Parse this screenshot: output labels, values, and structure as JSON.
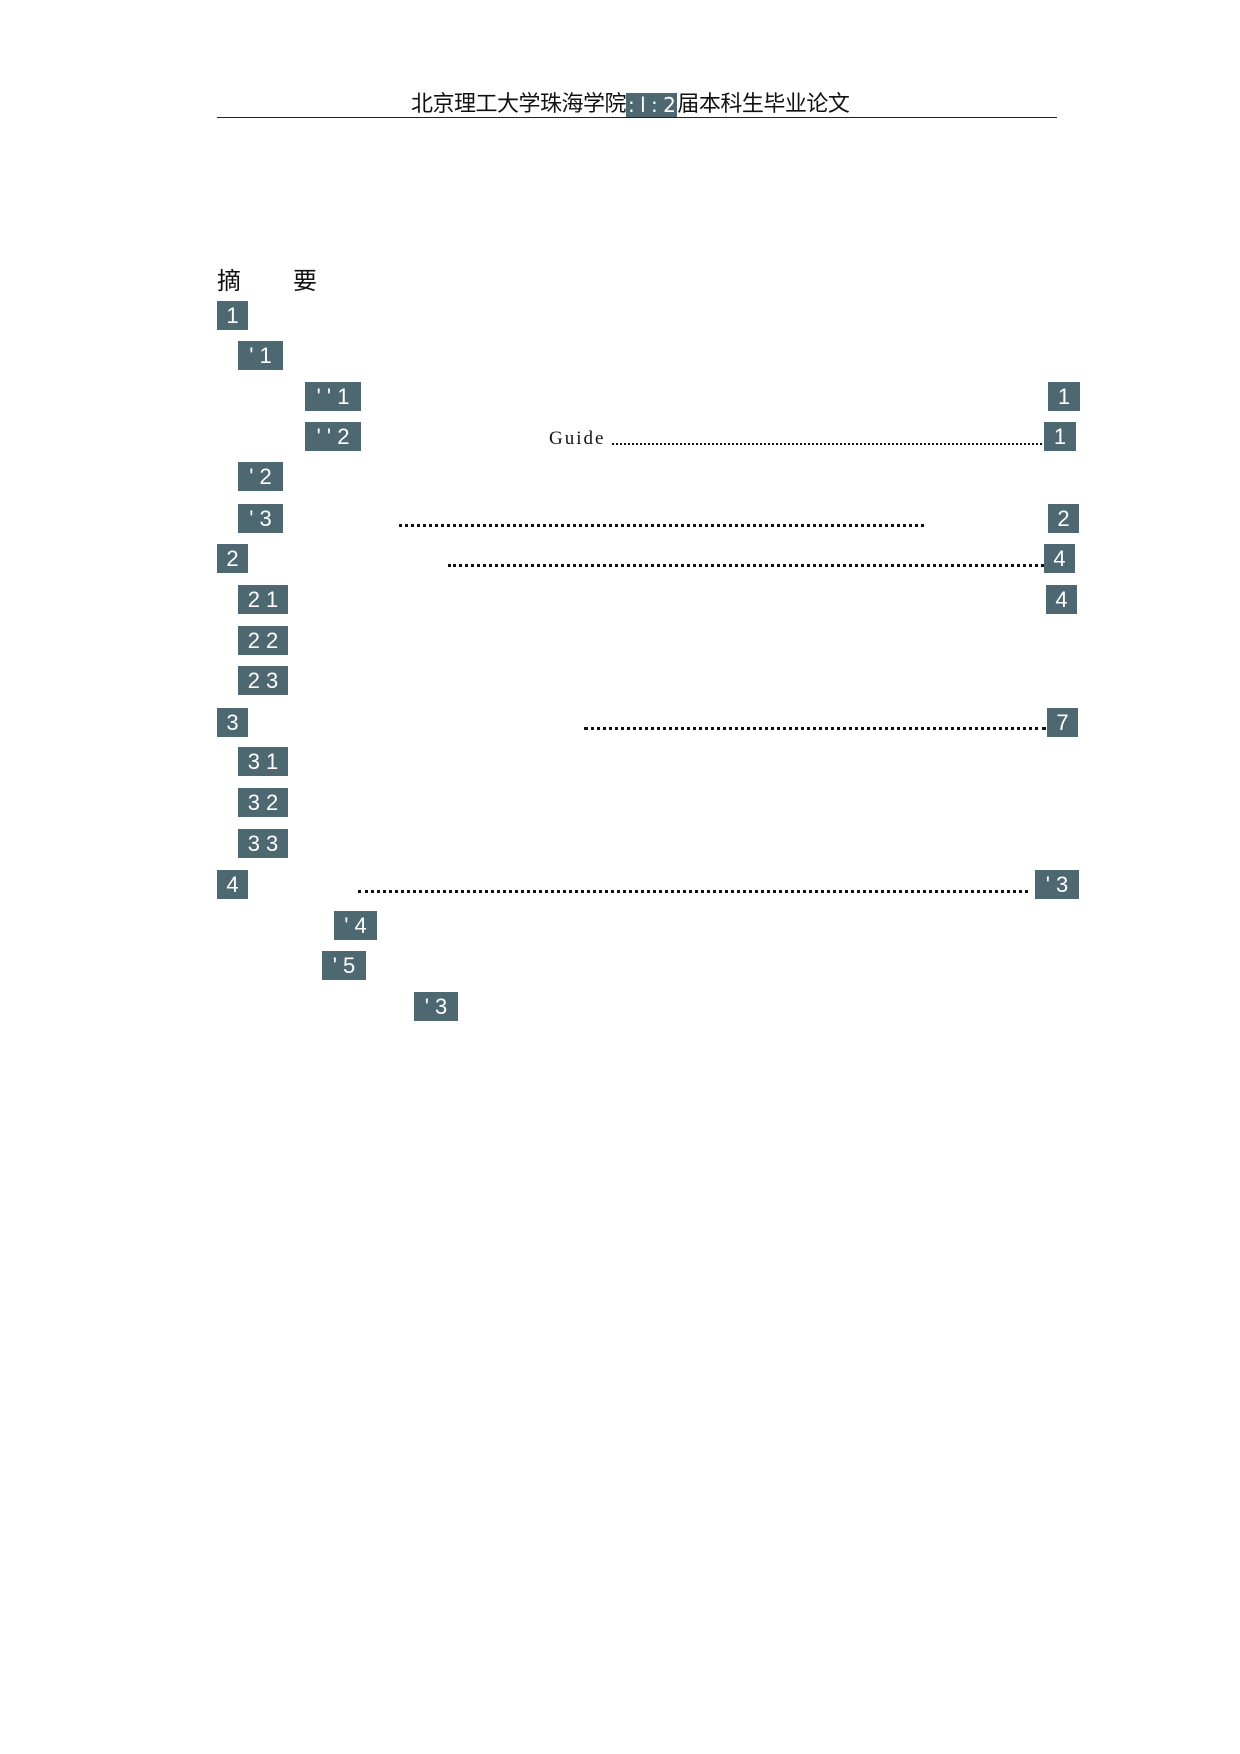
{
  "header": {
    "prefix": "北京理工大学珠海学院",
    "year_badge": ": l : 2",
    "suffix": "届本科生毕业论文"
  },
  "toc": {
    "title": "摘　要",
    "badge_color": "#4e6872",
    "entries": [
      {
        "num": "1"
      },
      {
        "num": "' 1"
      },
      {
        "num": "' ' 1",
        "page": "1"
      },
      {
        "num": "' ' 2",
        "text": "Guide",
        "page": "1"
      },
      {
        "num": "' 2"
      },
      {
        "num": "' 3",
        "page": "2"
      },
      {
        "num": "2",
        "page": "4"
      },
      {
        "num": "2 1",
        "page": "4"
      },
      {
        "num": "2 2"
      },
      {
        "num": "2 3"
      },
      {
        "num": "3",
        "page": "7"
      },
      {
        "num": "3 1"
      },
      {
        "num": "3 2"
      },
      {
        "num": "3 3"
      },
      {
        "num": "4",
        "page": "' 3"
      },
      {
        "num": "' 4"
      },
      {
        "num": "' 5"
      },
      {
        "num": "' 3"
      }
    ]
  }
}
